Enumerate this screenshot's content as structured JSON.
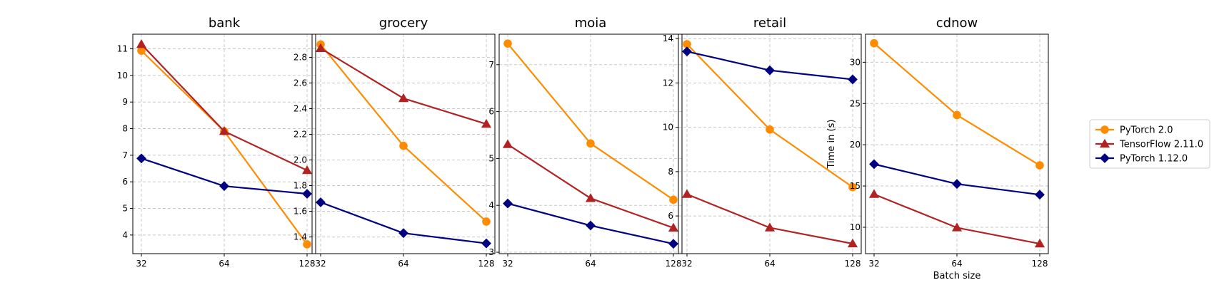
{
  "chart_data": {
    "type": "line",
    "x": [
      32,
      64,
      128
    ],
    "x_tick_labels": [
      "32",
      "64",
      "128"
    ],
    "x_scale": "log2",
    "grid": true,
    "legend_location": "right",
    "series_styles": [
      {
        "name": "PyTorch 2.0",
        "color": "#ff8c00",
        "marker": "circle"
      },
      {
        "name": "TensorFlow 2.11.0",
        "color": "#b22222",
        "marker": "triangle"
      },
      {
        "name": "PyTorch 1.12.0",
        "color": "#000080",
        "marker": "diamond"
      }
    ],
    "panels": [
      {
        "title": "bank",
        "xlabel": "",
        "ylabel": "",
        "ylim": [
          3.3,
          11.55
        ],
        "yticks": [
          4,
          5,
          6,
          7,
          8,
          9,
          10,
          11
        ],
        "series": [
          {
            "name": "PyTorch 2.0",
            "values": [
              10.93,
              7.9,
              3.65
            ]
          },
          {
            "name": "TensorFlow 2.11.0",
            "values": [
              11.17,
              7.9,
              6.43
            ]
          },
          {
            "name": "PyTorch 1.12.0",
            "values": [
              6.88,
              5.84,
              5.55
            ]
          }
        ]
      },
      {
        "title": "grocery",
        "xlabel": "",
        "ylabel": "",
        "ylim": [
          1.27,
          2.98
        ],
        "yticks": [
          1.4,
          1.6,
          1.8,
          2.0,
          2.2,
          2.4,
          2.6,
          2.8
        ],
        "series": [
          {
            "name": "PyTorch 2.0",
            "values": [
              2.9,
              2.11,
              1.52
            ]
          },
          {
            "name": "TensorFlow 2.11.0",
            "values": [
              2.87,
              2.48,
              2.28
            ]
          },
          {
            "name": "PyTorch 1.12.0",
            "values": [
              1.67,
              1.43,
              1.35
            ]
          }
        ]
      },
      {
        "title": "moia",
        "xlabel": "",
        "ylabel": "",
        "ylim": [
          2.97,
          7.65
        ],
        "yticks": [
          3,
          4,
          5,
          6,
          7
        ],
        "series": [
          {
            "name": "PyTorch 2.0",
            "values": [
              7.45,
              5.32,
              4.12
            ]
          },
          {
            "name": "TensorFlow 2.11.0",
            "values": [
              5.3,
              4.15,
              3.52
            ]
          },
          {
            "name": "PyTorch 1.12.0",
            "values": [
              4.04,
              3.57,
              3.18
            ]
          }
        ]
      },
      {
        "title": "retail",
        "xlabel": "",
        "ylabel": "",
        "ylim": [
          4.3,
          14.2
        ],
        "yticks": [
          6,
          8,
          10,
          12,
          14
        ],
        "series": [
          {
            "name": "PyTorch 2.0",
            "values": [
              13.75,
              9.9,
              7.3
            ]
          },
          {
            "name": "TensorFlow 2.11.0",
            "values": [
              6.98,
              5.47,
              4.75
            ]
          },
          {
            "name": "PyTorch 1.12.0",
            "values": [
              13.42,
              12.57,
              12.16
            ]
          }
        ]
      },
      {
        "title": "cdnow",
        "xlabel": "Batch size",
        "ylabel": "Time in (s)",
        "ylim": [
          6.8,
          33.4
        ],
        "yticks": [
          10,
          15,
          20,
          25,
          30
        ],
        "series": [
          {
            "name": "PyTorch 2.0",
            "values": [
              32.3,
              23.6,
              17.5
            ]
          },
          {
            "name": "TensorFlow 2.11.0",
            "values": [
              14.0,
              9.95,
              8.0
            ]
          },
          {
            "name": "PyTorch 1.12.0",
            "values": [
              17.65,
              15.25,
              13.95
            ]
          }
        ]
      }
    ]
  }
}
